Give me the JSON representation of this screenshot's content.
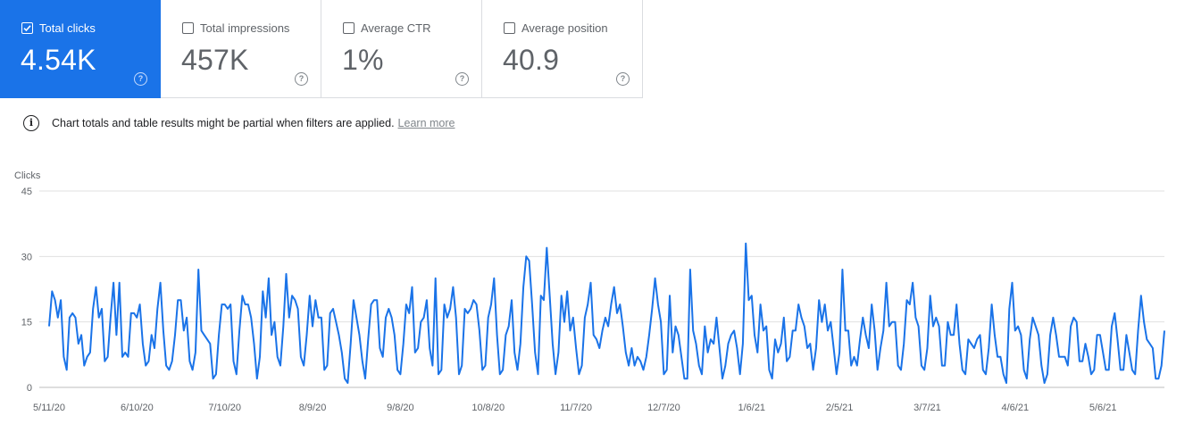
{
  "cards": [
    {
      "label": "Total clicks",
      "value": "4.54K",
      "checked": true
    },
    {
      "label": "Total impressions",
      "value": "457K",
      "checked": false
    },
    {
      "label": "Average CTR",
      "value": "1%",
      "checked": false
    },
    {
      "label": "Average position",
      "value": "40.9",
      "checked": false
    }
  ],
  "help_glyph": "?",
  "info_glyph": "i",
  "notice": {
    "text": "Chart totals and table results might be partial when filters are applied.",
    "link": "Learn more"
  },
  "colors": {
    "accent": "#1a73e8",
    "line": "#1a73e8",
    "grid": "#e0e0e0"
  },
  "chart_data": {
    "type": "line",
    "ylabel": "Clicks",
    "ylim": [
      0,
      45
    ],
    "yticks": [
      0,
      15,
      30,
      45
    ],
    "x_start": "5/11/20",
    "x_end": "5/12/21",
    "xticks": [
      "5/11/20",
      "6/10/20",
      "7/10/20",
      "8/9/20",
      "9/8/20",
      "10/8/20",
      "11/7/20",
      "12/7/20",
      "1/6/21",
      "2/5/21",
      "3/7/21",
      "4/6/21",
      "5/6/21"
    ],
    "grid": true,
    "series": [
      {
        "values": [
          14,
          22,
          20,
          16,
          20,
          7,
          4,
          16,
          17,
          16,
          10,
          12,
          5,
          7,
          8,
          18,
          23,
          16,
          18,
          6,
          7,
          16,
          24,
          12,
          24,
          7,
          8,
          7,
          17,
          17,
          16,
          19,
          10,
          5,
          6,
          12,
          9,
          18,
          24,
          13,
          5,
          4,
          6,
          12,
          20,
          20,
          13,
          16,
          6,
          4,
          8,
          27,
          13,
          12,
          11,
          10,
          2,
          3,
          12,
          19,
          19,
          18,
          19,
          6,
          3,
          13,
          21,
          19,
          19,
          16,
          10,
          2,
          7,
          22,
          16,
          25,
          12,
          15,
          7,
          5,
          14,
          26,
          16,
          21,
          20,
          18,
          7,
          5,
          12,
          21,
          14,
          20,
          16,
          16,
          4,
          5,
          17,
          18,
          15,
          12,
          8,
          2,
          1,
          10,
          20,
          16,
          12,
          6,
          2,
          11,
          19,
          20,
          20,
          9,
          7,
          16,
          18,
          16,
          12,
          4,
          3,
          10,
          19,
          17,
          23,
          8,
          9,
          15,
          16,
          20,
          9,
          5,
          25,
          3,
          4,
          19,
          16,
          18,
          23,
          16,
          3,
          5,
          18,
          17,
          18,
          20,
          19,
          13,
          4,
          5,
          16,
          19,
          25,
          12,
          3,
          4,
          12,
          14,
          20,
          8,
          4,
          10,
          23,
          30,
          29,
          19,
          8,
          3,
          21,
          20,
          32,
          21,
          10,
          3,
          8,
          21,
          15,
          22,
          13,
          16,
          9,
          3,
          5,
          16,
          19,
          24,
          12,
          11,
          9,
          13,
          16,
          14,
          19,
          23,
          17,
          19,
          14,
          8,
          5,
          9,
          5,
          7,
          6,
          4,
          7,
          12,
          18,
          25,
          19,
          15,
          3,
          4,
          21,
          8,
          14,
          12,
          7,
          2,
          2,
          27,
          13,
          10,
          5,
          3,
          14,
          8,
          11,
          10,
          16,
          9,
          2,
          5,
          10,
          12,
          13,
          9,
          3,
          10,
          33,
          20,
          21,
          12,
          8,
          19,
          13,
          14,
          4,
          2,
          11,
          8,
          10,
          16,
          6,
          7,
          13,
          13,
          19,
          16,
          14,
          9,
          10,
          4,
          9,
          20,
          15,
          19,
          13,
          15,
          9,
          3,
          8,
          27,
          13,
          13,
          5,
          7,
          5,
          11,
          16,
          12,
          9,
          19,
          13,
          4,
          9,
          13,
          24,
          14,
          15,
          15,
          5,
          4,
          10,
          20,
          19,
          24,
          16,
          14,
          5,
          4,
          9,
          21,
          14,
          16,
          14,
          5,
          5,
          15,
          12,
          12,
          19,
          10,
          4,
          3,
          11,
          10,
          9,
          11,
          12,
          4,
          3,
          9,
          19,
          12,
          7,
          7,
          3,
          1,
          18,
          24,
          13,
          14,
          12,
          4,
          2,
          11,
          16,
          14,
          12,
          5,
          1,
          3,
          12,
          16,
          12,
          7,
          7,
          7,
          5,
          14,
          16,
          15,
          6,
          6,
          10,
          7,
          3,
          4,
          12,
          12,
          8,
          4,
          4,
          14,
          17,
          11,
          4,
          4,
          12,
          8,
          4,
          3,
          13,
          21,
          15,
          11,
          10,
          9,
          2,
          2,
          5,
          13
        ]
      }
    ]
  }
}
